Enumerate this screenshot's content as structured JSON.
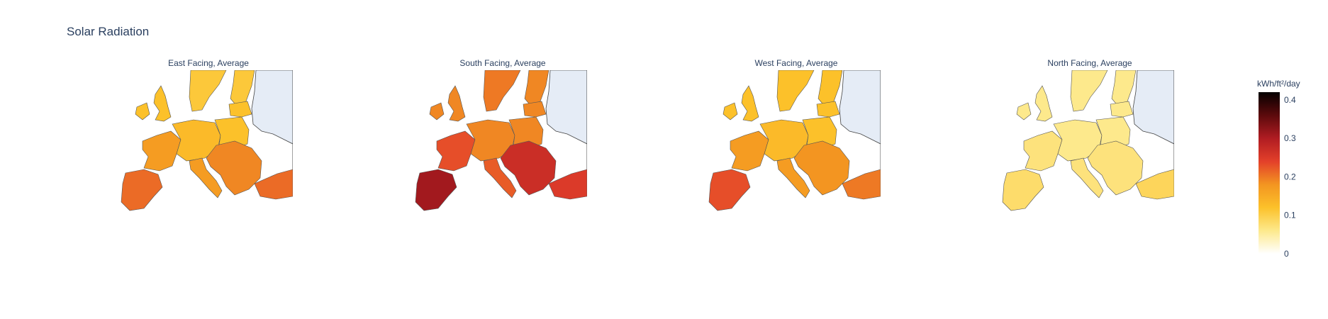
{
  "title": "Solar Radiation",
  "chart_data": {
    "type": "choropleth",
    "title": "Solar Radiation",
    "value_unit": "kWh/ft²/day",
    "colorscale": [
      "#ffffff",
      "#fde98c",
      "#fcc12a",
      "#f39521",
      "#e3402a",
      "#b01c22",
      "#5c0a0c",
      "#050000"
    ],
    "colorbar": {
      "title": "kWh/ft²/day",
      "range": [
        0,
        0.42
      ],
      "ticks": [
        "0",
        "0.1",
        "0.2",
        "0.3",
        "0.4"
      ],
      "tick_values": [
        0,
        0.1,
        0.2,
        0.3,
        0.4
      ]
    },
    "panels": [
      {
        "subtitle": "East Facing, Average",
        "values": {
          "iberia": 0.21,
          "france": 0.17,
          "uk": 0.12,
          "ireland": 0.12,
          "central": 0.13,
          "poland": 0.12,
          "scandinavia": 0.11,
          "finland": 0.11,
          "baltics": 0.12,
          "italy": 0.17,
          "balkans": 0.19,
          "turkey": 0.21
        }
      },
      {
        "subtitle": "South Facing, Average",
        "values": {
          "iberia": 0.31,
          "france": 0.23,
          "uk": 0.19,
          "ireland": 0.19,
          "central": 0.19,
          "poland": 0.19,
          "scandinavia": 0.2,
          "finland": 0.19,
          "baltics": 0.19,
          "italy": 0.22,
          "balkans": 0.27,
          "turkey": 0.25
        }
      },
      {
        "subtitle": "West Facing, Average",
        "values": {
          "iberia": 0.23,
          "france": 0.17,
          "uk": 0.12,
          "ireland": 0.12,
          "central": 0.13,
          "poland": 0.12,
          "scandinavia": 0.12,
          "finland": 0.12,
          "baltics": 0.12,
          "italy": 0.17,
          "balkans": 0.18,
          "turkey": 0.2
        }
      },
      {
        "subtitle": "North Facing, Average",
        "values": {
          "iberia": 0.08,
          "france": 0.07,
          "uk": 0.06,
          "ireland": 0.06,
          "central": 0.06,
          "poland": 0.06,
          "scandinavia": 0.06,
          "finland": 0.06,
          "baltics": 0.06,
          "italy": 0.07,
          "balkans": 0.07,
          "turkey": 0.09
        }
      }
    ]
  }
}
